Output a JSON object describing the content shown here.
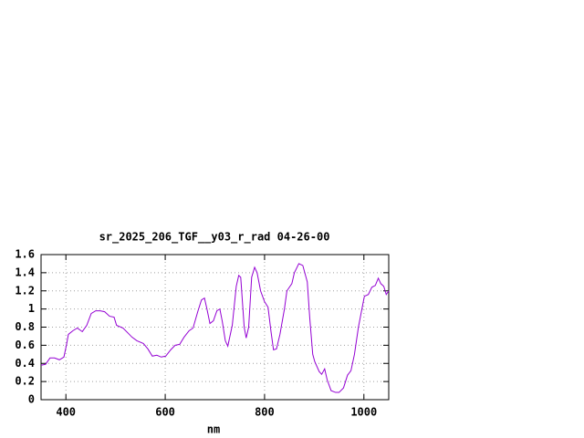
{
  "chart_data": {
    "type": "line",
    "title": "sr_2025_206_TGF__y03_r_rad 04-26-00",
    "x_label": "nm",
    "xlim": [
      350,
      1050
    ],
    "xticks": [
      400,
      600,
      800,
      1000
    ],
    "ylim": [
      0,
      1.6
    ],
    "yticks": [
      0,
      0.2,
      0.4,
      0.6,
      0.8,
      1,
      1.2,
      1.4,
      1.6
    ],
    "grid": true,
    "series": [
      {
        "color": "#9400d3",
        "x": [
          350,
          359,
          368,
          377,
          387,
          396,
          401,
          405,
          414,
          423,
          433,
          442,
          451,
          460,
          469,
          478,
          488,
          497,
          502,
          515,
          524,
          533,
          543,
          556,
          565,
          574,
          583,
          592,
          601,
          611,
          620,
          629,
          638,
          648,
          656,
          666,
          673,
          679,
          684,
          690,
          697,
          704,
          710,
          715,
          721,
          726,
          735,
          743,
          748,
          752,
          759,
          763,
          768,
          774,
          780,
          785,
          792,
          800,
          807,
          813,
          818,
          824,
          831,
          840,
          845,
          855,
          860,
          869,
          877,
          886,
          891,
          897,
          901,
          910,
          915,
          921,
          926,
          934,
          943,
          950,
          959,
          967,
          974,
          981,
          989,
          996,
          1001,
          1009,
          1016,
          1023,
          1029,
          1034,
          1040,
          1045,
          1050
        ],
        "values": [
          0.38,
          0.39,
          0.46,
          0.46,
          0.44,
          0.47,
          0.6,
          0.72,
          0.76,
          0.79,
          0.75,
          0.82,
          0.95,
          0.98,
          0.98,
          0.97,
          0.92,
          0.91,
          0.82,
          0.79,
          0.74,
          0.69,
          0.65,
          0.62,
          0.56,
          0.48,
          0.49,
          0.47,
          0.48,
          0.55,
          0.6,
          0.61,
          0.69,
          0.76,
          0.79,
          0.98,
          1.1,
          1.12,
          1.0,
          0.84,
          0.87,
          0.98,
          1.0,
          0.86,
          0.65,
          0.59,
          0.82,
          1.25,
          1.37,
          1.35,
          0.8,
          0.68,
          0.8,
          1.35,
          1.46,
          1.4,
          1.2,
          1.08,
          1.02,
          0.75,
          0.55,
          0.56,
          0.72,
          1.0,
          1.2,
          1.28,
          1.4,
          1.5,
          1.48,
          1.3,
          0.9,
          0.5,
          0.42,
          0.31,
          0.28,
          0.34,
          0.22,
          0.1,
          0.08,
          0.08,
          0.13,
          0.27,
          0.32,
          0.5,
          0.8,
          1.0,
          1.14,
          1.16,
          1.24,
          1.26,
          1.34,
          1.28,
          1.25,
          1.16,
          1.2
        ]
      }
    ]
  }
}
